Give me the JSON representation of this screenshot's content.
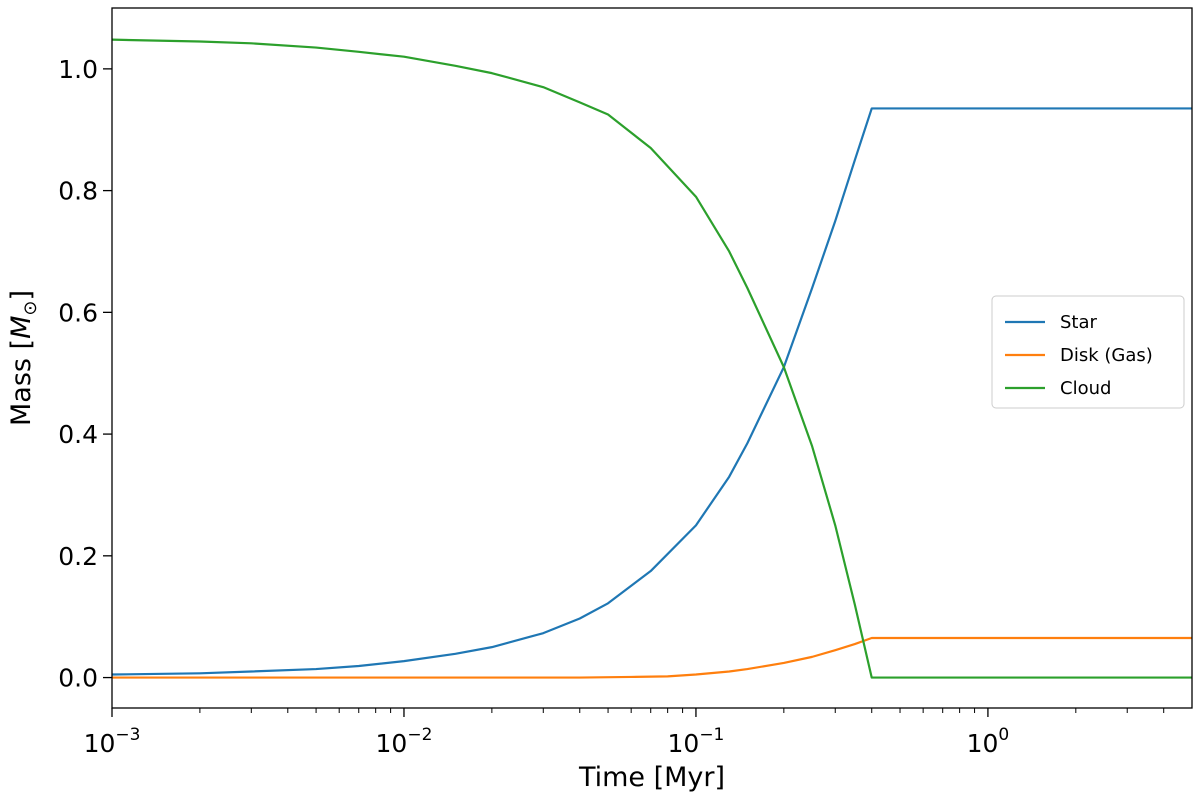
{
  "chart_data": {
    "type": "line",
    "xlabel": "Time [Myr]",
    "ylabel_main": "Mass [",
    "ylabel_math": "M",
    "ylabel_sub": "⊙",
    "ylabel_close": "]",
    "x_scale": "log",
    "xlim": [
      0.001,
      5.0
    ],
    "ylim": [
      -0.05,
      1.1
    ],
    "grid": false,
    "legend_placement": "center-right",
    "x_ticks": [
      {
        "value": 0.001,
        "base": "10",
        "exp": "−3"
      },
      {
        "value": 0.01,
        "base": "10",
        "exp": "−2"
      },
      {
        "value": 0.1,
        "base": "10",
        "exp": "−1"
      },
      {
        "value": 1,
        "base": "10",
        "exp": "0"
      }
    ],
    "y_ticks": [
      {
        "value": 0.0,
        "label": "0.0"
      },
      {
        "value": 0.2,
        "label": "0.2"
      },
      {
        "value": 0.4,
        "label": "0.4"
      },
      {
        "value": 0.6,
        "label": "0.6"
      },
      {
        "value": 0.8,
        "label": "0.8"
      },
      {
        "value": 1.0,
        "label": "1.0"
      }
    ],
    "series": [
      {
        "name": "Star",
        "color": "#1f77b4",
        "points": [
          [
            0.001,
            0.005
          ],
          [
            0.002,
            0.007
          ],
          [
            0.003,
            0.01
          ],
          [
            0.005,
            0.014
          ],
          [
            0.007,
            0.019
          ],
          [
            0.01,
            0.027
          ],
          [
            0.015,
            0.039
          ],
          [
            0.02,
            0.05
          ],
          [
            0.03,
            0.073
          ],
          [
            0.04,
            0.097
          ],
          [
            0.05,
            0.122
          ],
          [
            0.07,
            0.175
          ],
          [
            0.1,
            0.25
          ],
          [
            0.13,
            0.33
          ],
          [
            0.15,
            0.385
          ],
          [
            0.2,
            0.51
          ],
          [
            0.25,
            0.64
          ],
          [
            0.3,
            0.75
          ],
          [
            0.35,
            0.85
          ],
          [
            0.4,
            0.935
          ],
          [
            1.0,
            0.935
          ],
          [
            5.0,
            0.935
          ]
        ]
      },
      {
        "name": "Disk (Gas)",
        "color": "#ff7f0e",
        "points": [
          [
            0.001,
            0.0
          ],
          [
            0.01,
            0.0
          ],
          [
            0.04,
            0.0
          ],
          [
            0.06,
            0.001
          ],
          [
            0.08,
            0.002
          ],
          [
            0.1,
            0.005
          ],
          [
            0.13,
            0.01
          ],
          [
            0.15,
            0.014
          ],
          [
            0.2,
            0.024
          ],
          [
            0.25,
            0.034
          ],
          [
            0.3,
            0.045
          ],
          [
            0.35,
            0.055
          ],
          [
            0.4,
            0.065
          ],
          [
            1.0,
            0.065
          ],
          [
            5.0,
            0.065
          ]
        ]
      },
      {
        "name": "Cloud",
        "color": "#2ca02c",
        "points": [
          [
            0.001,
            1.048
          ],
          [
            0.002,
            1.045
          ],
          [
            0.003,
            1.042
          ],
          [
            0.005,
            1.035
          ],
          [
            0.007,
            1.028
          ],
          [
            0.01,
            1.02
          ],
          [
            0.015,
            1.005
          ],
          [
            0.02,
            0.993
          ],
          [
            0.03,
            0.97
          ],
          [
            0.04,
            0.945
          ],
          [
            0.05,
            0.925
          ],
          [
            0.07,
            0.87
          ],
          [
            0.1,
            0.79
          ],
          [
            0.13,
            0.7
          ],
          [
            0.15,
            0.64
          ],
          [
            0.2,
            0.51
          ],
          [
            0.25,
            0.38
          ],
          [
            0.3,
            0.25
          ],
          [
            0.35,
            0.12
          ],
          [
            0.4,
            0.0
          ],
          [
            1.0,
            0.0
          ],
          [
            5.0,
            0.0
          ]
        ]
      }
    ]
  }
}
